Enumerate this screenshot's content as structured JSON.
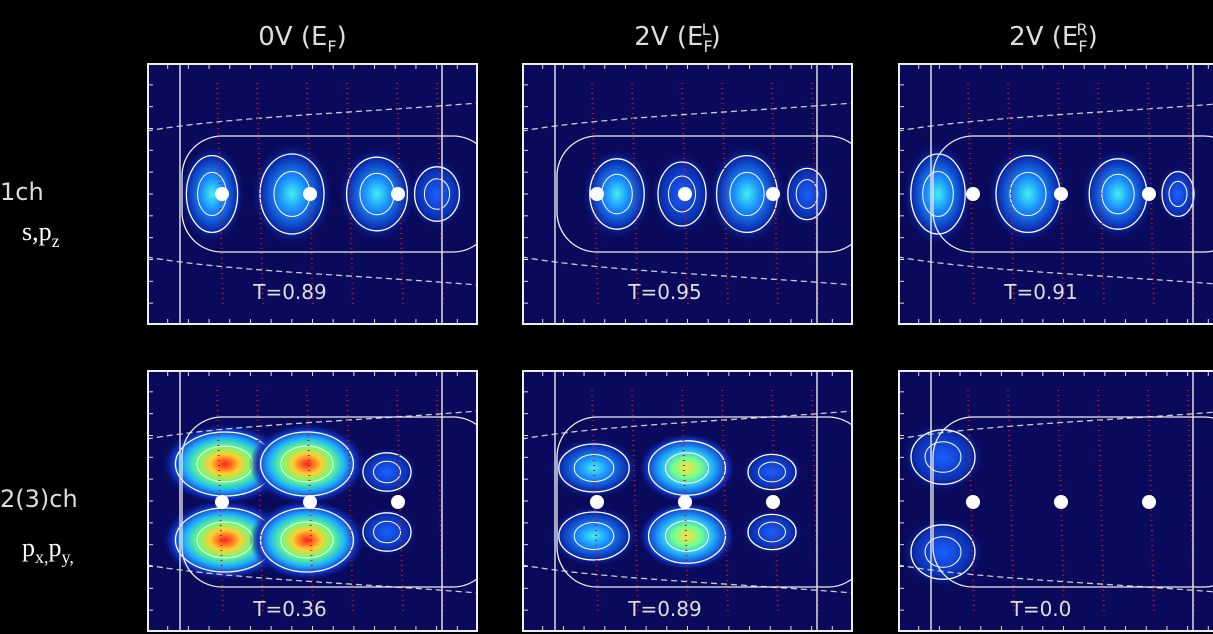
{
  "columns": [
    {
      "text": "0V (E",
      "sub": "F",
      "close": ")"
    },
    {
      "text": "2V (E",
      "sub": "F",
      "sup": "L",
      "close": ")"
    },
    {
      "text": "2V (E",
      "sub": "F",
      "sup": "R",
      "close": ")"
    }
  ],
  "rows": [
    {
      "label": "1ch",
      "orbital": [
        {
          "text": "s,p"
        },
        {
          "sub": "z"
        }
      ],
      "panels": [
        "T=0.89",
        "T=0.95",
        "T=0.91"
      ]
    },
    {
      "label": "2(3)ch",
      "orbital": [
        {
          "text": "p"
        },
        {
          "sub": "x,"
        },
        {
          "text": "p"
        },
        {
          "sub": "y,"
        }
      ],
      "panels": [
        "T=0.36",
        "T=0.89",
        "T=0.0"
      ]
    }
  ]
}
